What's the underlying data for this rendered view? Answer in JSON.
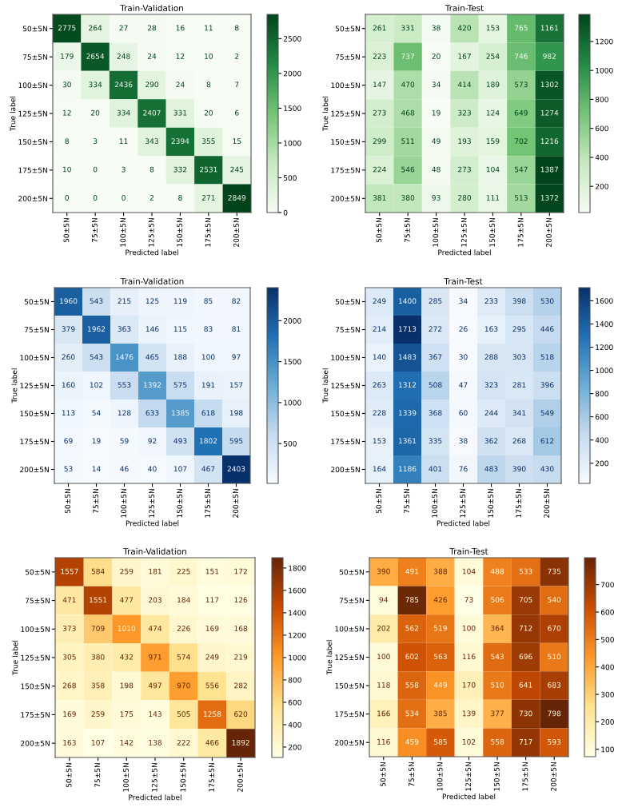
{
  "chart_data": [
    {
      "type": "heatmap",
      "title": "Train-Validation",
      "xlabel": "Predicted label",
      "ylabel": "True label",
      "categories": [
        "50±5N",
        "75±5N",
        "100±5N",
        "125±5N",
        "150±5N",
        "175±5N",
        "200±5N"
      ],
      "y_categories": [
        "50±5N",
        "75±5N",
        "100±5N",
        "125±5N",
        "150±5N",
        "175±5N",
        "200±5N"
      ],
      "colors": [
        "#f7fcf5",
        "#c7e9c0",
        "#74c476",
        "#238b45",
        "#00441b"
      ],
      "data_labels": true,
      "clim": [
        0,
        2849
      ],
      "cticks": [
        0,
        500,
        1000,
        1500,
        2000,
        2500
      ],
      "cells": [
        [
          2775,
          264,
          27,
          28,
          16,
          11,
          8
        ],
        [
          179,
          2654,
          248,
          24,
          12,
          10,
          2
        ],
        [
          30,
          334,
          2436,
          290,
          24,
          8,
          7
        ],
        [
          12,
          20,
          334,
          2407,
          331,
          20,
          6
        ],
        [
          8,
          3,
          11,
          343,
          2394,
          355,
          15
        ],
        [
          10,
          0,
          3,
          8,
          332,
          2531,
          245
        ],
        [
          0,
          0,
          0,
          2,
          8,
          271,
          2849
        ]
      ]
    },
    {
      "type": "heatmap",
      "title": "Train-Test",
      "xlabel": "Predicted label",
      "ylabel": "True label",
      "categories": [
        "50±5N",
        "75±5N",
        "100±5N",
        "125±5N",
        "150±5N",
        "175±5N",
        "200±5N"
      ],
      "y_categories": [
        "50±5N",
        "75±5N",
        "100±5N",
        "125±5N",
        "150±5N",
        "175±5N",
        "200±5N"
      ],
      "colors": [
        "#f7fcf5",
        "#c7e9c0",
        "#74c476",
        "#238b45",
        "#00441b"
      ],
      "data_labels": true,
      "clim": [
        19,
        1387
      ],
      "cticks": [
        200,
        400,
        600,
        800,
        1000,
        1200
      ],
      "cells": [
        [
          261,
          331,
          38,
          420,
          153,
          765,
          1161
        ],
        [
          223,
          737,
          20,
          167,
          254,
          746,
          982
        ],
        [
          147,
          470,
          34,
          414,
          189,
          573,
          1302
        ],
        [
          273,
          468,
          19,
          323,
          124,
          649,
          1274
        ],
        [
          299,
          511,
          49,
          193,
          159,
          702,
          1216
        ],
        [
          224,
          546,
          48,
          273,
          104,
          547,
          1387
        ],
        [
          381,
          380,
          93,
          280,
          111,
          513,
          1372
        ]
      ]
    },
    {
      "type": "heatmap",
      "title": "Train-Validation",
      "xlabel": "Predicted label",
      "ylabel": "True label",
      "categories": [
        "50±5N",
        "75±5N",
        "100±5N",
        "125±5N",
        "150±5N",
        "175±5N",
        "200±5N"
      ],
      "y_categories": [
        "50±5N",
        "75±5N",
        "100±5N",
        "125±5N",
        "150±5N",
        "175±5N",
        "200±5N"
      ],
      "colors": [
        "#f7fbff",
        "#c6dbef",
        "#6baed6",
        "#2171b5",
        "#08306b"
      ],
      "data_labels": true,
      "clim": [
        14,
        2403
      ],
      "cticks": [
        500,
        1000,
        1500,
        2000
      ],
      "cells": [
        [
          1960,
          543,
          215,
          125,
          119,
          85,
          82
        ],
        [
          379,
          1962,
          363,
          146,
          115,
          83,
          81
        ],
        [
          260,
          543,
          1476,
          465,
          188,
          100,
          97
        ],
        [
          160,
          102,
          553,
          1392,
          575,
          191,
          157
        ],
        [
          113,
          54,
          128,
          633,
          1385,
          618,
          198
        ],
        [
          69,
          19,
          59,
          92,
          493,
          1802,
          595
        ],
        [
          53,
          14,
          46,
          40,
          107,
          467,
          2403
        ]
      ]
    },
    {
      "type": "heatmap",
      "title": "Train-Test",
      "xlabel": "Predicted label",
      "ylabel": "True label",
      "categories": [
        "50±5N",
        "75±5N",
        "100±5N",
        "125±5N",
        "150±5N",
        "175±5N",
        "200±5N"
      ],
      "y_categories": [
        "50±5N",
        "75±5N",
        "100±5N",
        "125±5N",
        "150±5N",
        "175±5N",
        "200±5N"
      ],
      "colors": [
        "#f7fbff",
        "#c6dbef",
        "#6baed6",
        "#2171b5",
        "#08306b"
      ],
      "data_labels": true,
      "clim": [
        26,
        1713
      ],
      "cticks": [
        200,
        400,
        600,
        800,
        1000,
        1200,
        1400,
        1600
      ],
      "cells": [
        [
          249,
          1400,
          285,
          34,
          233,
          398,
          530
        ],
        [
          214,
          1713,
          272,
          26,
          163,
          295,
          446
        ],
        [
          140,
          1483,
          367,
          30,
          288,
          303,
          518
        ],
        [
          263,
          1312,
          508,
          47,
          323,
          281,
          396
        ],
        [
          228,
          1339,
          368,
          60,
          244,
          341,
          549
        ],
        [
          153,
          1361,
          335,
          38,
          362,
          268,
          612
        ],
        [
          164,
          1186,
          401,
          76,
          483,
          390,
          430
        ]
      ]
    },
    {
      "type": "heatmap",
      "title": "Train-Validation",
      "xlabel": "Predicted label",
      "ylabel": "True label",
      "categories": [
        "50±5N",
        "75±5N",
        "100±5N",
        "125±5N",
        "150±5N",
        "175±5N",
        "200±5N"
      ],
      "y_categories": [
        "50±5N",
        "75±5N",
        "100±5N",
        "125±5N",
        "150±5N",
        "175±5N",
        "200±5N"
      ],
      "colors": [
        "#ffffe5",
        "#fee391",
        "#fe9929",
        "#cc4c02",
        "#662506"
      ],
      "data_labels": true,
      "clim": [
        107,
        1892
      ],
      "cticks": [
        200,
        400,
        600,
        800,
        1000,
        1200,
        1400,
        1600,
        1800
      ],
      "cells": [
        [
          1557,
          584,
          259,
          181,
          225,
          151,
          172
        ],
        [
          471,
          1551,
          477,
          203,
          184,
          117,
          126
        ],
        [
          373,
          709,
          1010,
          474,
          226,
          169,
          168
        ],
        [
          305,
          380,
          432,
          971,
          574,
          249,
          219
        ],
        [
          268,
          358,
          198,
          497,
          970,
          556,
          282
        ],
        [
          169,
          259,
          175,
          143,
          505,
          1258,
          620
        ],
        [
          163,
          107,
          142,
          138,
          222,
          466,
          1892
        ]
      ]
    },
    {
      "type": "heatmap",
      "title": "Train-Test",
      "xlabel": "Predicted label",
      "ylabel": "True label",
      "categories": [
        "50±5N",
        "75±5N",
        "100±5N",
        "125±5N",
        "150±5N",
        "175±5N",
        "200±5N"
      ],
      "y_categories": [
        "50±5N",
        "75±5N",
        "100±5N",
        "125±5N",
        "150±5N",
        "175±5N",
        "200±5N"
      ],
      "colors": [
        "#ffffe5",
        "#fee391",
        "#fe9929",
        "#cc4c02",
        "#662506"
      ],
      "data_labels": true,
      "clim": [
        73,
        798
      ],
      "cticks": [
        100,
        200,
        300,
        400,
        500,
        600,
        700
      ],
      "cells": [
        [
          390,
          491,
          388,
          104,
          488,
          533,
          735
        ],
        [
          94,
          785,
          426,
          73,
          506,
          705,
          540
        ],
        [
          202,
          562,
          519,
          100,
          364,
          712,
          670
        ],
        [
          100,
          602,
          563,
          116,
          543,
          696,
          510
        ],
        [
          118,
          558,
          449,
          170,
          510,
          641,
          683
        ],
        [
          166,
          534,
          385,
          139,
          377,
          730,
          798
        ],
        [
          116,
          459,
          585,
          102,
          558,
          717,
          593
        ]
      ]
    }
  ]
}
